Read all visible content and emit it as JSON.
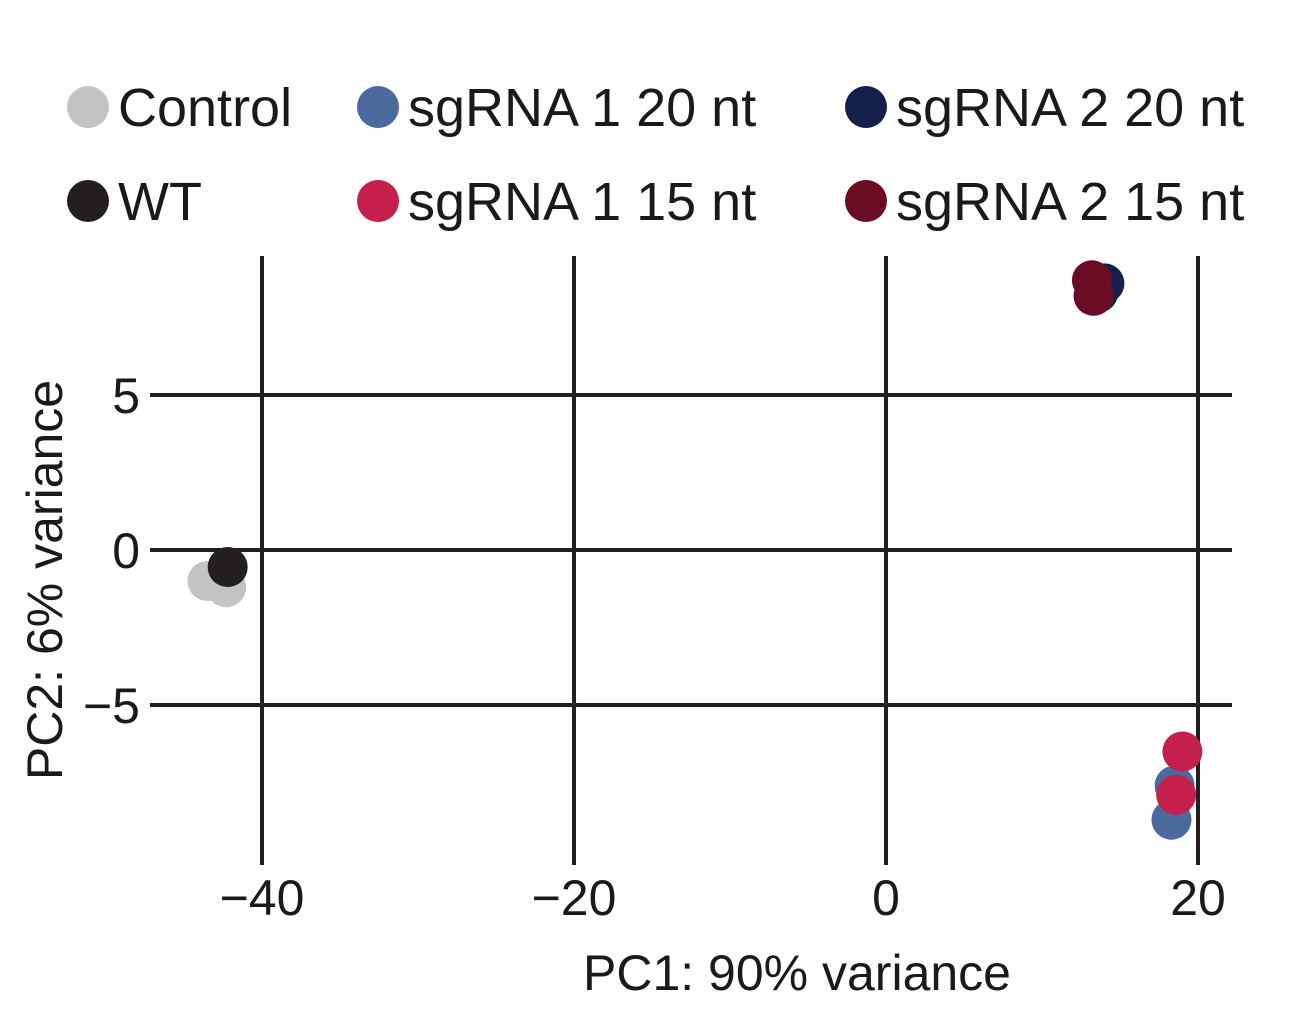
{
  "chart_data": {
    "type": "scatter",
    "title": "",
    "xlabel": "PC1: 90% variance",
    "ylabel": "PC2: 6% variance",
    "xlim": [
      -44.5,
      22
    ],
    "ylim": [
      -10.2,
      9.2
    ],
    "xticks": [
      -40,
      -20,
      0,
      20
    ],
    "yticks": [
      5,
      0,
      -5
    ],
    "xtick_labels": [
      "−40",
      "−20",
      "0",
      "20"
    ],
    "ytick_labels": [
      "5",
      "0",
      "−5"
    ],
    "grid": true,
    "legend_position": "top",
    "series": [
      {
        "name": "Control",
        "color": "#c2c4c3",
        "points": [
          [
            -43.5,
            -1.0
          ],
          [
            -42.3,
            -1.2
          ]
        ]
      },
      {
        "name": "WT",
        "color": "#231f20",
        "points": [
          [
            -42.2,
            -0.55
          ]
        ]
      },
      {
        "name": "sgRNA 1 20 nt",
        "color": "#4b6b9e",
        "points": [
          [
            18.5,
            -7.6
          ],
          [
            18.3,
            -8.7
          ]
        ]
      },
      {
        "name": "sgRNA 1 15 nt",
        "color": "#c41f4d",
        "points": [
          [
            19.0,
            -6.5
          ],
          [
            18.6,
            -7.9
          ]
        ]
      },
      {
        "name": "sgRNA 2 20 nt",
        "color": "#14204a",
        "points": [
          [
            14.0,
            8.6
          ],
          [
            13.6,
            8.3
          ]
        ]
      },
      {
        "name": "sgRNA 2 15 nt",
        "color": "#6a0c23",
        "points": [
          [
            13.2,
            8.7
          ],
          [
            13.3,
            8.2
          ]
        ]
      }
    ]
  }
}
